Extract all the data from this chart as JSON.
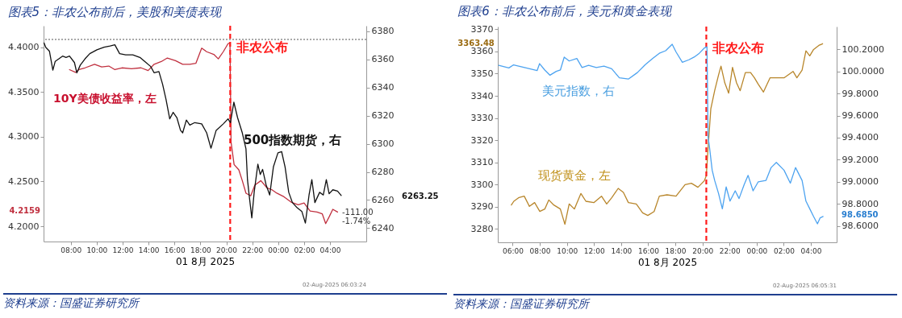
{
  "chart_data": [
    {
      "type": "line",
      "title": "图表5：非农公布前后，美股和美债表现",
      "xlabel": "01 8月 2025",
      "xlim": [
        "2025-08-01T05:54",
        "2025-08-02T06:48"
      ],
      "xticks": [
        {
          "value": "2025-08-01T08:00",
          "label": "08:00"
        },
        {
          "value": "2025-08-01T10:00",
          "label": "10:00"
        },
        {
          "value": "2025-08-01T12:00",
          "label": "12:00"
        },
        {
          "value": "2025-08-01T14:00",
          "label": "14:00"
        },
        {
          "value": "2025-08-01T16:00",
          "label": "16:00"
        },
        {
          "value": "2025-08-01T18:00",
          "label": "18:00"
        },
        {
          "value": "2025-08-01T20:00",
          "label": "20:00"
        },
        {
          "value": "2025-08-01T22:00",
          "label": "22:00"
        },
        {
          "value": "2025-08-02T00:00",
          "label": "00:00"
        },
        {
          "value": "2025-08-02T02:00",
          "label": "02:00"
        },
        {
          "value": "2025-08-02T04:00",
          "label": "04:00"
        }
      ],
      "ylim": [
        4.183,
        4.424
      ],
      "yticks": [
        {
          "value": 4.2,
          "label": "4.2000"
        },
        {
          "value": 4.25,
          "label": "4.2500"
        },
        {
          "value": 4.3,
          "label": "4.3000"
        },
        {
          "value": 4.35,
          "label": "4.3500"
        },
        {
          "value": 4.4,
          "label": "4.4000"
        }
      ],
      "y2lim": [
        6230.5,
        6384
      ],
      "y2ticks": [
        6240,
        6260,
        6280,
        6300,
        6320,
        6340,
        6360,
        6380
      ],
      "grid": false,
      "line_style": "solid",
      "series": [
        {
          "type": "line",
          "axis": "y2",
          "color": "#111111",
          "x": [
            "2025-08-01T05:56",
            "2025-08-01T06:04",
            "2025-08-01T06:21",
            "2025-08-01T06:37",
            "2025-08-01T06:48",
            "2025-08-01T07:05",
            "2025-08-01T07:22",
            "2025-08-01T07:38",
            "2025-08-01T07:54",
            "2025-08-01T08:17",
            "2025-08-01T08:28",
            "2025-08-01T08:44",
            "2025-08-01T09:06",
            "2025-08-01T09:28",
            "2025-08-01T10:01",
            "2025-08-01T10:34",
            "2025-08-01T11:02",
            "2025-08-01T11:24",
            "2025-08-01T11:46",
            "2025-08-01T12:14",
            "2025-08-01T12:47",
            "2025-08-01T13:20",
            "2025-08-01T13:42",
            "2025-08-01T14:10",
            "2025-08-01T14:26",
            "2025-08-01T14:48",
            "2025-08-01T15:05",
            "2025-08-01T15:21",
            "2025-08-01T15:38",
            "2025-08-01T15:54",
            "2025-08-01T16:11",
            "2025-08-01T16:28",
            "2025-08-01T16:38",
            "2025-08-01T16:55",
            "2025-08-01T17:11",
            "2025-08-01T17:34",
            "2025-08-01T18:06",
            "2025-08-01T18:29",
            "2025-08-01T18:49",
            "2025-08-01T19:13",
            "2025-08-01T19:46",
            "2025-08-01T20:08",
            "2025-08-01T20:19",
            "2025-08-01T20:35",
            "2025-08-01T20:52",
            "2025-08-01T21:14",
            "2025-08-01T21:31",
            "2025-08-01T21:38",
            "2025-08-01T21:47",
            "2025-08-01T21:58",
            "2025-08-01T22:09",
            "2025-08-01T22:26",
            "2025-08-01T22:37",
            "2025-08-01T22:48",
            "2025-08-01T23:04",
            "2025-08-01T23:21",
            "2025-08-01T23:38",
            "2025-08-01T23:59",
            "2025-08-02T00:16",
            "2025-08-02T00:32",
            "2025-08-02T00:49",
            "2025-08-02T01:06",
            "2025-08-02T01:28",
            "2025-08-02T01:50",
            "2025-08-02T02:06",
            "2025-08-02T02:23",
            "2025-08-02T02:36",
            "2025-08-02T02:50",
            "2025-08-02T03:12",
            "2025-08-02T03:29",
            "2025-08-02T03:43",
            "2025-08-02T03:56",
            "2025-08-02T04:13",
            "2025-08-02T04:35",
            "2025-08-02T04:52"
          ],
          "values": [
            6371.8,
            6368.7,
            6366,
            6352.4,
            6358.7,
            6360.5,
            6362.4,
            6361.5,
            6362.4,
            6357.8,
            6350.5,
            6356,
            6360.5,
            6364.2,
            6366.9,
            6368.7,
            6369.6,
            6370.5,
            6364.2,
            6363.3,
            6363.3,
            6361.5,
            6358.7,
            6355,
            6350.5,
            6351.4,
            6342.4,
            6331.5,
            6317.8,
            6322.4,
            6318.7,
            6309.6,
            6307.8,
            6316.9,
            6313.3,
            6315.1,
            6314.2,
            6307.8,
            6296.9,
            6309.6,
            6314.2,
            6317.8,
            6315.1,
            6329.6,
            6318.7,
            6307.8,
            6296.4,
            6274.5,
            6261.8,
            6247.3,
            6265.5,
            6285.5,
            6278.2,
            6281.8,
            6270.9,
            6263.6,
            6283.6,
            6293.6,
            6294.5,
            6283.6,
            6265.5,
            6258.2,
            6254.5,
            6251.8,
            6243.6,
            6263.6,
            6274.5,
            6258.2,
            6265.5,
            6263.6,
            6274.5,
            6264.5,
            6267.3,
            6266.4,
            6263.25
          ]
        },
        {
          "type": "line",
          "axis": "y",
          "color": "#c0303f",
          "x": [
            "2025-08-01T07:54",
            "2025-08-01T08:22",
            "2025-08-01T08:38",
            "2025-08-01T09:06",
            "2025-08-01T09:50",
            "2025-08-01T10:23",
            "2025-08-01T10:56",
            "2025-08-01T11:24",
            "2025-08-01T11:57",
            "2025-08-01T12:41",
            "2025-08-01T13:25",
            "2025-08-01T13:58",
            "2025-08-01T14:26",
            "2025-08-01T14:59",
            "2025-08-01T15:27",
            "2025-08-01T16:05",
            "2025-08-01T16:38",
            "2025-08-01T17:11",
            "2025-08-01T17:39",
            "2025-08-01T18:06",
            "2025-08-01T18:29",
            "2025-08-01T19:02",
            "2025-08-01T19:23",
            "2025-08-01T19:46",
            "2025-08-01T20:08",
            "2025-08-01T20:17",
            "2025-08-01T20:22",
            "2025-08-01T20:36",
            "2025-08-01T20:58",
            "2025-08-01T21:14",
            "2025-08-01T21:31",
            "2025-08-01T21:53",
            "2025-08-01T22:12",
            "2025-08-01T22:40",
            "2025-08-01T23:08",
            "2025-08-01T23:30",
            "2025-08-01T23:54",
            "2025-08-02T00:27",
            "2025-08-02T01:00",
            "2025-08-02T01:33",
            "2025-08-02T02:00",
            "2025-08-02T02:28",
            "2025-08-02T03:00",
            "2025-08-02T03:24",
            "2025-08-02T03:40",
            "2025-08-02T03:57",
            "2025-08-02T04:13",
            "2025-08-02T04:35"
          ],
          "values": [
            4.375,
            4.372,
            4.375,
            4.377,
            4.381,
            4.378,
            4.379,
            4.375,
            4.377,
            4.376,
            4.377,
            4.374,
            4.381,
            4.384,
            4.388,
            4.385,
            4.381,
            4.381,
            4.382,
            4.399,
            4.395,
            4.392,
            4.387,
            4.395,
            4.404,
            4.405,
            4.294,
            4.269,
            4.263,
            4.251,
            4.237,
            4.234,
            4.246,
            4.251,
            4.243,
            4.241,
            4.237,
            4.233,
            4.227,
            4.224,
            4.226,
            4.217,
            4.216,
            4.214,
            4.203,
            4.211,
            4.219,
            4.2159
          ]
        }
      ],
      "ref_lines": [
        {
          "axis": "x",
          "value": "2025-08-01T20:18",
          "label": "非农公布",
          "color": "#ff1a1a",
          "line_style": "dashed"
        },
        {
          "axis": "y2",
          "value": 6374.25,
          "label": null,
          "color": "#555555",
          "line_style": "dotted"
        }
      ],
      "annotations": [
        "10Y美债收益率，左",
        "500指数期货，右",
        "4.2159",
        "6263.25",
        "-111.00",
        "-1.74%",
        "资料来源：国盛证券研究所",
        "02-Aug-2025 06:03:24"
      ]
    },
    {
      "type": "line",
      "title": "图表6：非农公布前后，美元和黄金表现",
      "xlabel": "01 8月 2025",
      "xlim": [
        "2025-08-01T04:54",
        "2025-08-02T05:54"
      ],
      "xticks": [
        {
          "value": "2025-08-01T06:00",
          "label": "06:00"
        },
        {
          "value": "2025-08-01T08:00",
          "label": "08:00"
        },
        {
          "value": "2025-08-01T10:00",
          "label": "10:00"
        },
        {
          "value": "2025-08-01T12:00",
          "label": "12:00"
        },
        {
          "value": "2025-08-01T14:00",
          "label": "14:00"
        },
        {
          "value": "2025-08-01T16:00",
          "label": "16:00"
        },
        {
          "value": "2025-08-01T18:00",
          "label": "18:00"
        },
        {
          "value": "2025-08-01T20:00",
          "label": "20:00"
        },
        {
          "value": "2025-08-01T22:00",
          "label": "22:00"
        },
        {
          "value": "2025-08-02T00:00",
          "label": "00:00"
        },
        {
          "value": "2025-08-02T02:00",
          "label": "02:00"
        },
        {
          "value": "2025-08-02T04:00",
          "label": "04:00"
        }
      ],
      "ylim": [
        3274,
        3371.2
      ],
      "yticks": [
        3280,
        3290,
        3300,
        3310,
        3320,
        3330,
        3340,
        3350,
        3360,
        3370
      ],
      "y2lim": [
        98.451,
        100.407
      ],
      "y2ticks": [
        {
          "value": 98.6,
          "label": "98.6000"
        },
        {
          "value": 98.8,
          "label": "98.8000"
        },
        {
          "value": 99,
          "label": "99.0000"
        },
        {
          "value": 99.2,
          "label": "99.2000"
        },
        {
          "value": 99.4,
          "label": "99.4000"
        },
        {
          "value": 99.6,
          "label": "99.6000"
        },
        {
          "value": 99.8,
          "label": "99.8000"
        },
        {
          "value": 100,
          "label": "100.0000"
        },
        {
          "value": 100.2,
          "label": "100.2000"
        }
      ],
      "grid": false,
      "line_style": "solid",
      "series": [
        {
          "type": "line",
          "axis": "y2",
          "color": "#4da3f0",
          "x": [
            "2025-08-01T04:58",
            "2025-08-01T05:43",
            "2025-08-01T06:04",
            "2025-08-01T07:48",
            "2025-08-01T07:59",
            "2025-08-01T08:22",
            "2025-08-01T08:45",
            "2025-08-01T09:13",
            "2025-08-01T09:31",
            "2025-08-01T09:48",
            "2025-08-01T10:10",
            "2025-08-01T10:44",
            "2025-08-01T11:07",
            "2025-08-01T11:36",
            "2025-08-01T12:10",
            "2025-08-01T12:44",
            "2025-08-01T13:18",
            "2025-08-01T13:52",
            "2025-08-01T14:32",
            "2025-08-01T15:12",
            "2025-08-01T15:46",
            "2025-08-01T16:20",
            "2025-08-01T16:49",
            "2025-08-01T17:17",
            "2025-08-01T17:46",
            "2025-08-01T18:03",
            "2025-08-01T18:31",
            "2025-08-01T19:00",
            "2025-08-01T19:23",
            "2025-08-01T19:46",
            "2025-08-01T20:08",
            "2025-08-01T20:20",
            "2025-08-01T20:25",
            "2025-08-01T20:31",
            "2025-08-01T20:43",
            "2025-08-01T20:54",
            "2025-08-01T21:11",
            "2025-08-01T21:28",
            "2025-08-01T21:45",
            "2025-08-01T22:02",
            "2025-08-01T22:25",
            "2025-08-01T22:42",
            "2025-08-01T23:05",
            "2025-08-01T23:22",
            "2025-08-01T23:44",
            "2025-08-02T00:07",
            "2025-08-02T00:41",
            "2025-08-02T01:04",
            "2025-08-02T01:27",
            "2025-08-02T02:01",
            "2025-08-02T02:29",
            "2025-08-02T02:52",
            "2025-08-02T03:21",
            "2025-08-02T03:38",
            "2025-08-02T03:55",
            "2025-08-02T04:12",
            "2025-08-02T04:29",
            "2025-08-02T04:41",
            "2025-08-02T04:54"
          ],
          "values": [
            100.055,
            100.032,
            100.06,
            100.008,
            100.071,
            100.013,
            99.966,
            100.001,
            100.013,
            100.13,
            100.095,
            100.118,
            100.036,
            100.055,
            100.036,
            100.048,
            100.025,
            99.943,
            99.931,
            99.99,
            100.06,
            100.118,
            100.165,
            100.188,
            100.247,
            100.177,
            100.083,
            100.106,
            100.13,
            100.165,
            100.212,
            100.223,
            99.405,
            99.315,
            99.105,
            99.012,
            98.895,
            98.755,
            98.953,
            98.825,
            98.918,
            98.848,
            98.977,
            99.058,
            98.918,
            99.0,
            99.012,
            99.129,
            99.175,
            99.105,
            98.988,
            99.129,
            99.012,
            98.825,
            98.755,
            98.685,
            98.619,
            98.673,
            98.685
          ]
        },
        {
          "type": "line",
          "axis": "y",
          "color": "#b8862b",
          "x": [
            "2025-08-01T05:54",
            "2025-08-01T06:05",
            "2025-08-01T06:28",
            "2025-08-01T06:51",
            "2025-08-01T07:14",
            "2025-08-01T07:37",
            "2025-08-01T08:00",
            "2025-08-01T08:22",
            "2025-08-01T08:40",
            "2025-08-01T09:02",
            "2025-08-01T09:31",
            "2025-08-01T09:51",
            "2025-08-01T10:10",
            "2025-08-01T10:33",
            "2025-08-01T11:02",
            "2025-08-01T11:24",
            "2025-08-01T11:59",
            "2025-08-01T12:33",
            "2025-08-01T12:56",
            "2025-08-01T13:19",
            "2025-08-01T13:47",
            "2025-08-01T14:10",
            "2025-08-01T14:32",
            "2025-08-01T15:07",
            "2025-08-01T15:35",
            "2025-08-01T15:58",
            "2025-08-01T16:26",
            "2025-08-01T16:49",
            "2025-08-01T17:23",
            "2025-08-01T18:03",
            "2025-08-01T18:43",
            "2025-08-01T19:11",
            "2025-08-01T19:40",
            "2025-08-01T20:08",
            "2025-08-01T20:17",
            "2025-08-01T20:25",
            "2025-08-01T20:37",
            "2025-08-01T20:54",
            "2025-08-01T21:11",
            "2025-08-01T21:22",
            "2025-08-01T21:39",
            "2025-08-01T21:56",
            "2025-08-01T22:13",
            "2025-08-01T22:31",
            "2025-08-01T22:47",
            "2025-08-01T23:10",
            "2025-08-01T23:33",
            "2025-08-01T23:50",
            "2025-08-02T00:07",
            "2025-08-02T00:30",
            "2025-08-02T00:59",
            "2025-08-02T01:27",
            "2025-08-02T02:01",
            "2025-08-02T02:41",
            "2025-08-02T02:58",
            "2025-08-02T03:21",
            "2025-08-02T03:38",
            "2025-08-02T03:55",
            "2025-08-02T04:12",
            "2025-08-02T04:35",
            "2025-08-02T04:52"
          ],
          "values": [
            3290.8,
            3292.5,
            3294.2,
            3294.8,
            3290.2,
            3291.9,
            3287.9,
            3289.0,
            3293.1,
            3290.8,
            3289.0,
            3282.1,
            3291.3,
            3289.0,
            3296.0,
            3292.5,
            3291.9,
            3294.8,
            3291.3,
            3294.2,
            3298.3,
            3296.5,
            3291.9,
            3291.3,
            3287.3,
            3286.1,
            3287.9,
            3294.8,
            3295.4,
            3294.8,
            3300.0,
            3300.6,
            3298.8,
            3301.7,
            3304.0,
            3316.7,
            3334.2,
            3342.3,
            3349.3,
            3353.4,
            3345.8,
            3341.2,
            3352.8,
            3345.8,
            3342.3,
            3350.5,
            3350.5,
            3348.1,
            3345.2,
            3341.7,
            3348.1,
            3348.1,
            3348.1,
            3351.0,
            3348.1,
            3351.6,
            3360.3,
            3358.0,
            3360.9,
            3362.7,
            3363.48
          ]
        }
      ],
      "ref_lines": [
        {
          "axis": "x",
          "value": "2025-08-01T20:17",
          "label": "非农公布",
          "color": "#ff1a1a",
          "line_style": "dashed"
        }
      ],
      "annotations": [
        "美元指数，右",
        "现货黄金，左",
        "3363.48",
        "98.6850",
        "资料来源：国盛证券研究所",
        "02-Aug-2025 06:05:31"
      ]
    }
  ]
}
